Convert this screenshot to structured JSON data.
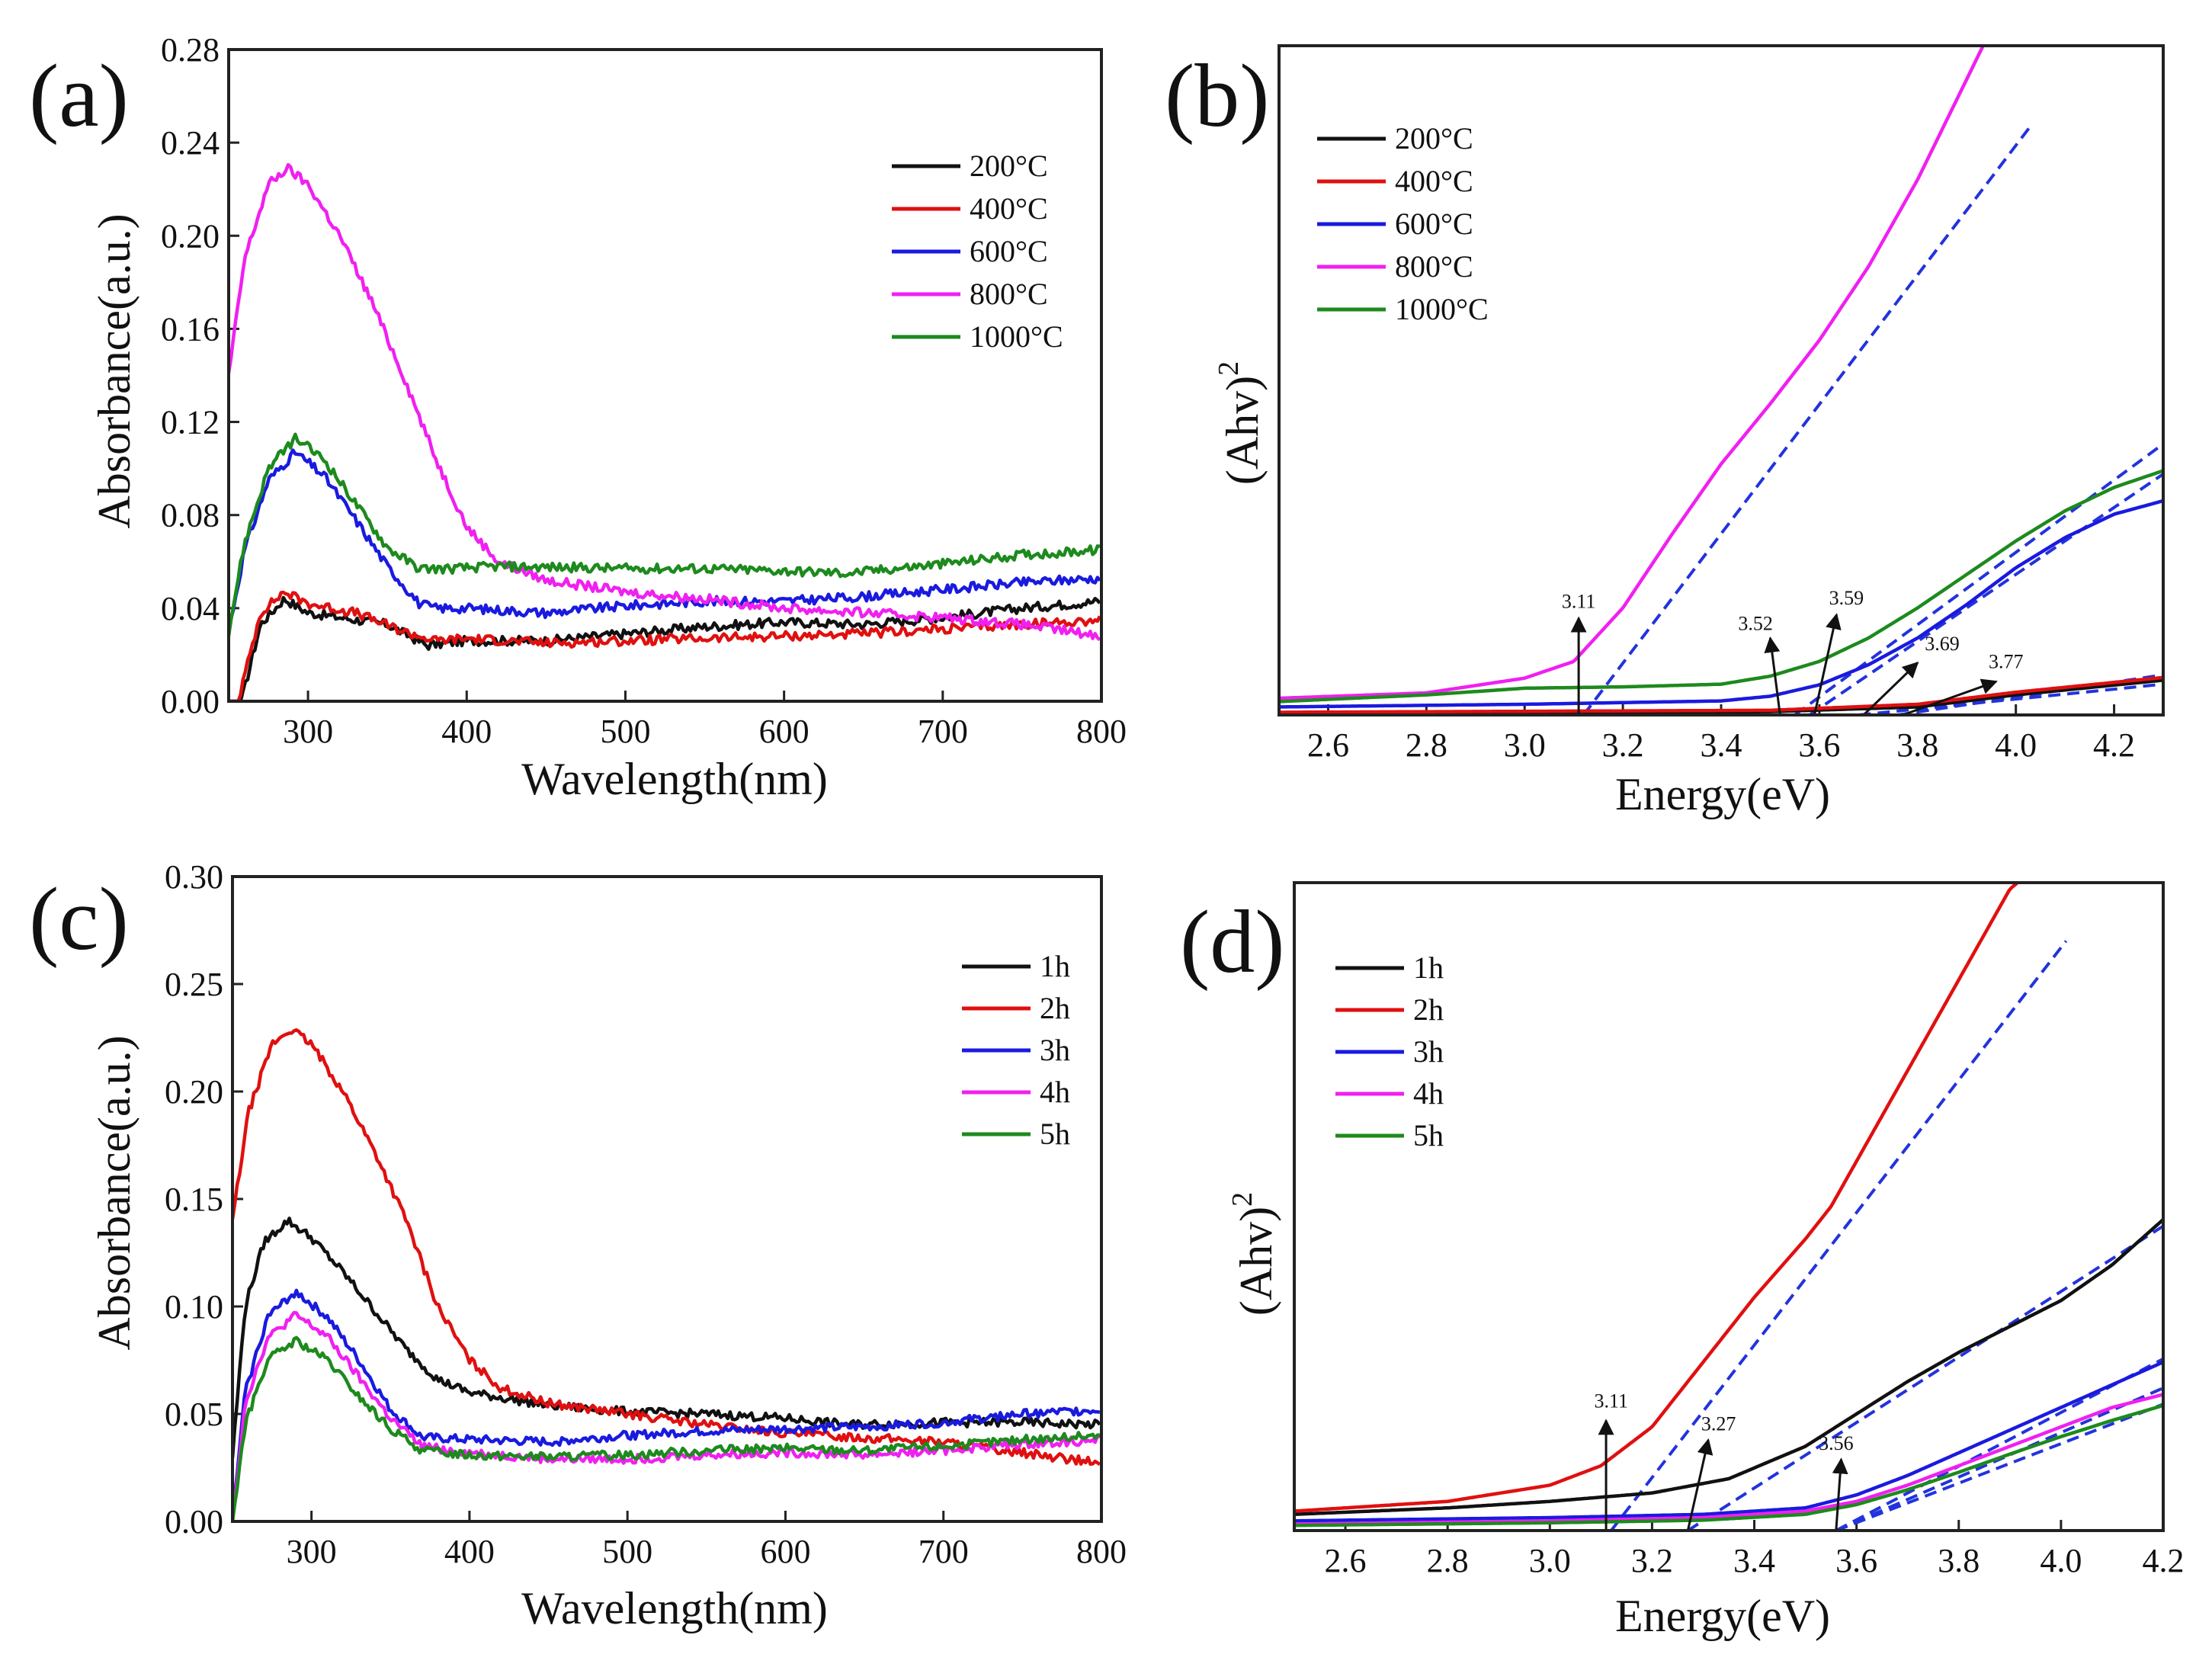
{
  "chart_data": [
    {
      "id": "a",
      "panel_label": "(a)",
      "type": "line",
      "xlabel": "Wavelength(nm)",
      "ylabel": "Absorbance(a.u.)",
      "xlim": [
        250,
        800
      ],
      "ylim": [
        0,
        0.28
      ],
      "xticks": [
        300,
        400,
        500,
        600,
        700,
        800
      ],
      "yticks": [
        0.0,
        0.04,
        0.08,
        0.12,
        0.16,
        0.2,
        0.24,
        0.28
      ],
      "ydecimals": 2,
      "show_yticks": true,
      "legend_position": "top-right",
      "series": [
        {
          "name": "200°C",
          "color": "#111111",
          "noise": 0.002,
          "x": [
            250,
            258,
            270,
            285,
            300,
            320,
            350,
            375,
            400,
            450,
            500,
            550,
            600,
            650,
            700,
            750,
            800
          ],
          "y": [
            0.0,
            0.0,
            0.033,
            0.044,
            0.038,
            0.036,
            0.033,
            0.024,
            0.026,
            0.026,
            0.029,
            0.032,
            0.034,
            0.033,
            0.036,
            0.04,
            0.043
          ]
        },
        {
          "name": "400°C",
          "color": "#e01010",
          "noise": 0.002,
          "x": [
            250,
            256,
            270,
            285,
            300,
            330,
            360,
            380,
            400,
            450,
            500,
            550,
            600,
            650,
            700,
            750,
            800
          ],
          "y": [
            0.0,
            0.0,
            0.038,
            0.047,
            0.042,
            0.038,
            0.03,
            0.026,
            0.027,
            0.025,
            0.026,
            0.027,
            0.028,
            0.029,
            0.031,
            0.033,
            0.035
          ]
        },
        {
          "name": "600°C",
          "color": "#1a1adf",
          "noise": 0.002,
          "x": [
            250,
            260,
            275,
            292,
            310,
            330,
            350,
            370,
            380,
            400,
            450,
            500,
            550,
            600,
            650,
            700,
            750,
            800
          ],
          "y": [
            0.03,
            0.065,
            0.095,
            0.107,
            0.097,
            0.078,
            0.058,
            0.042,
            0.04,
            0.04,
            0.038,
            0.041,
            0.043,
            0.043,
            0.045,
            0.048,
            0.051,
            0.053
          ]
        },
        {
          "name": "800°C",
          "color": "#f020f0",
          "noise": 0.002,
          "x": [
            250,
            260,
            275,
            287,
            300,
            320,
            340,
            360,
            380,
            400,
            420,
            450,
            500,
            550,
            600,
            650,
            700,
            750,
            800
          ],
          "y": [
            0.14,
            0.19,
            0.222,
            0.229,
            0.222,
            0.2,
            0.172,
            0.14,
            0.105,
            0.075,
            0.06,
            0.052,
            0.047,
            0.044,
            0.04,
            0.038,
            0.036,
            0.033,
            0.028
          ]
        },
        {
          "name": "1000°C",
          "color": "#1d8a1d",
          "noise": 0.002,
          "x": [
            250,
            260,
            275,
            292,
            310,
            330,
            350,
            370,
            390,
            420,
            500,
            550,
            600,
            640,
            700,
            750,
            800
          ],
          "y": [
            0.03,
            0.068,
            0.1,
            0.113,
            0.104,
            0.085,
            0.066,
            0.057,
            0.057,
            0.058,
            0.057,
            0.057,
            0.056,
            0.055,
            0.059,
            0.063,
            0.065
          ]
        }
      ]
    },
    {
      "id": "b",
      "panel_label": "(b)",
      "type": "line",
      "xlabel": "Energy(eV)",
      "ylabel_main": "(Ahv)",
      "ylabel_sup": "2",
      "xlim": [
        2.5,
        4.3
      ],
      "ylim": [
        0,
        100
      ],
      "xticks": [
        2.6,
        2.8,
        3.0,
        3.2,
        3.4,
        3.6,
        3.8,
        4.0,
        4.2
      ],
      "xdecimals": 1,
      "show_yticks": false,
      "legend_position": "top-left",
      "series": [
        {
          "name": "200°C",
          "color": "#111111",
          "x": [
            2.5,
            3.5,
            3.8,
            4.0,
            4.3
          ],
          "y": [
            0.3,
            0.5,
            1.2,
            3.0,
            5.2
          ]
        },
        {
          "name": "400°C",
          "color": "#e01010",
          "x": [
            2.5,
            3.5,
            3.8,
            4.0,
            4.3
          ],
          "y": [
            0.4,
            0.7,
            1.6,
            3.4,
            5.6
          ]
        },
        {
          "name": "600°C",
          "color": "#1a1adf",
          "x": [
            2.5,
            3.0,
            3.4,
            3.5,
            3.6,
            3.7,
            3.8,
            3.9,
            4.0,
            4.1,
            4.2,
            4.3
          ],
          "y": [
            1.2,
            1.6,
            2.1,
            2.8,
            4.5,
            7.5,
            11.5,
            16.5,
            22.0,
            26.5,
            30.0,
            32.0
          ]
        },
        {
          "name": "800°C",
          "color": "#f020f0",
          "x": [
            2.5,
            2.8,
            3.0,
            3.1,
            3.2,
            3.3,
            3.4,
            3.5,
            3.6,
            3.7,
            3.8,
            3.9,
            3.94
          ],
          "y": [
            2.5,
            3.3,
            5.5,
            8.0,
            16.0,
            27.0,
            37.5,
            46.5,
            56.0,
            67.0,
            80.0,
            95.0,
            101.0
          ]
        },
        {
          "name": "1000°C",
          "color": "#1d8a1d",
          "x": [
            2.5,
            2.8,
            3.0,
            3.2,
            3.4,
            3.5,
            3.6,
            3.7,
            3.8,
            3.9,
            4.0,
            4.1,
            4.2,
            4.3
          ],
          "y": [
            2.0,
            3.0,
            4.0,
            4.2,
            4.6,
            5.8,
            8.0,
            11.5,
            16.0,
            21.0,
            26.0,
            30.5,
            34.0,
            36.5
          ]
        }
      ],
      "fit_lines": [
        {
          "x": [
            3.12,
            4.03
          ],
          "y": [
            0,
            88
          ]
        },
        {
          "x": [
            3.55,
            4.3
          ],
          "y": [
            0,
            40.5
          ]
        },
        {
          "x": [
            3.58,
            4.3
          ],
          "y": [
            0,
            36.0
          ]
        },
        {
          "x": [
            3.68,
            4.3
          ],
          "y": [
            0,
            4.6
          ]
        },
        {
          "x": [
            3.76,
            4.3
          ],
          "y": [
            0,
            6.0
          ]
        }
      ],
      "annotations": [
        {
          "text": "3.11",
          "x": 3.11,
          "label_y": 16.0,
          "ex": 3.11,
          "ey": 0,
          "sx": 3.11,
          "sy": 14.5
        },
        {
          "text": "3.52",
          "x": 3.47,
          "label_y": 12.7,
          "ex": 3.52,
          "ey": 0,
          "sx": 3.5,
          "sy": 11.5
        },
        {
          "text": "3.59",
          "x": 3.655,
          "label_y": 16.5,
          "ex": 3.59,
          "ey": 0,
          "sx": 3.635,
          "sy": 15.0
        },
        {
          "text": "3.69",
          "x": 3.85,
          "label_y": 9.7,
          "ex": 3.69,
          "ey": 0,
          "sx": 3.8,
          "sy": 7.8
        },
        {
          "text": "3.77",
          "x": 3.98,
          "label_y": 7.0,
          "ex": 3.77,
          "ey": 0,
          "sx": 3.96,
          "sy": 5.0
        }
      ]
    },
    {
      "id": "c",
      "panel_label": "(c)",
      "type": "line",
      "xlabel": "Wavelength(nm)",
      "ylabel": "Absorbance(a.u.)",
      "xlim": [
        250,
        800
      ],
      "ylim": [
        0,
        0.3
      ],
      "xticks": [
        300,
        400,
        500,
        600,
        700,
        800
      ],
      "yticks": [
        0.0,
        0.05,
        0.1,
        0.15,
        0.2,
        0.25,
        0.3
      ],
      "ydecimals": 2,
      "show_yticks": true,
      "legend_position": "top-right",
      "series": [
        {
          "name": "1h",
          "color": "#111111",
          "noise": 0.002,
          "x": [
            250,
            258,
            270,
            285,
            300,
            320,
            340,
            360,
            380,
            400,
            450,
            500,
            550,
            600,
            640,
            700,
            750,
            800
          ],
          "y": [
            0.03,
            0.1,
            0.13,
            0.14,
            0.132,
            0.116,
            0.098,
            0.08,
            0.066,
            0.06,
            0.054,
            0.051,
            0.05,
            0.048,
            0.045,
            0.046,
            0.046,
            0.045
          ]
        },
        {
          "name": "2h",
          "color": "#e01010",
          "noise": 0.002,
          "x": [
            250,
            260,
            275,
            287,
            300,
            320,
            340,
            360,
            380,
            400,
            420,
            450,
            500,
            550,
            600,
            650,
            700,
            750,
            800
          ],
          "y": [
            0.14,
            0.19,
            0.222,
            0.229,
            0.222,
            0.2,
            0.172,
            0.14,
            0.1,
            0.075,
            0.062,
            0.055,
            0.05,
            0.045,
            0.041,
            0.039,
            0.037,
            0.032,
            0.027
          ]
        },
        {
          "name": "3h",
          "color": "#1a1adf",
          "noise": 0.002,
          "x": [
            250,
            258,
            272,
            290,
            310,
            330,
            350,
            370,
            400,
            450,
            500,
            550,
            600,
            650,
            700,
            750,
            800
          ],
          "y": [
            0.0,
            0.06,
            0.095,
            0.107,
            0.095,
            0.075,
            0.052,
            0.039,
            0.038,
            0.037,
            0.04,
            0.042,
            0.043,
            0.044,
            0.046,
            0.05,
            0.052
          ]
        },
        {
          "name": "4h",
          "color": "#f020f0",
          "noise": 0.002,
          "x": [
            250,
            258,
            272,
            290,
            310,
            330,
            350,
            370,
            400,
            450,
            500,
            550,
            600,
            650,
            700,
            750,
            800
          ],
          "y": [
            0.0,
            0.055,
            0.085,
            0.096,
            0.086,
            0.067,
            0.048,
            0.035,
            0.032,
            0.029,
            0.029,
            0.031,
            0.032,
            0.031,
            0.033,
            0.036,
            0.038
          ]
        },
        {
          "name": "5h",
          "color": "#1d8a1d",
          "noise": 0.002,
          "x": [
            250,
            258,
            272,
            290,
            310,
            330,
            350,
            370,
            400,
            450,
            500,
            550,
            600,
            650,
            700,
            750,
            800
          ],
          "y": [
            0.0,
            0.045,
            0.075,
            0.084,
            0.075,
            0.058,
            0.043,
            0.033,
            0.031,
            0.03,
            0.031,
            0.033,
            0.034,
            0.033,
            0.035,
            0.038,
            0.04
          ]
        }
      ]
    },
    {
      "id": "d",
      "panel_label": "(d)",
      "type": "line",
      "xlabel": "Energy(eV)",
      "ylabel_main": "(Ahv)",
      "ylabel_sup": "2",
      "xlim": [
        2.5,
        4.2
      ],
      "ylim": [
        0,
        100
      ],
      "xticks": [
        2.6,
        2.8,
        3.0,
        3.2,
        3.4,
        3.6,
        3.8,
        4.0,
        4.2
      ],
      "xdecimals": 1,
      "show_yticks": false,
      "legend_position": "top-left",
      "series": [
        {
          "name": "1h",
          "color": "#111111",
          "x": [
            2.5,
            2.8,
            3.0,
            3.2,
            3.35,
            3.5,
            3.6,
            3.7,
            3.8,
            3.9,
            4.0,
            4.1,
            4.2
          ],
          "y": [
            2.5,
            3.5,
            4.5,
            5.8,
            8.0,
            13.0,
            18.0,
            23.0,
            27.5,
            31.5,
            35.5,
            41.0,
            48.0
          ]
        },
        {
          "name": "2h",
          "color": "#e01010",
          "x": [
            2.5,
            2.8,
            3.0,
            3.1,
            3.2,
            3.3,
            3.4,
            3.5,
            3.55,
            3.6,
            3.7,
            3.8,
            3.9,
            3.93
          ],
          "y": [
            3.0,
            4.5,
            7.0,
            10.0,
            16.0,
            26.0,
            36.0,
            45.0,
            50.0,
            57.0,
            71.0,
            85.0,
            99.0,
            101.0
          ]
        },
        {
          "name": "3h",
          "color": "#1a1adf",
          "x": [
            2.5,
            3.0,
            3.3,
            3.5,
            3.6,
            3.7,
            3.8,
            3.9,
            4.0,
            4.1,
            4.2
          ],
          "y": [
            1.5,
            2.0,
            2.5,
            3.5,
            5.5,
            8.5,
            12.0,
            15.5,
            19.0,
            22.5,
            26.0
          ]
        },
        {
          "name": "4h",
          "color": "#f020f0",
          "x": [
            2.5,
            3.0,
            3.3,
            3.5,
            3.6,
            3.7,
            3.8,
            3.9,
            4.0,
            4.1,
            4.2
          ],
          "y": [
            1.0,
            1.5,
            2.0,
            3.0,
            4.5,
            7.0,
            10.0,
            13.0,
            16.0,
            19.0,
            21.0
          ]
        },
        {
          "name": "5h",
          "color": "#1d8a1d",
          "x": [
            2.5,
            3.0,
            3.3,
            3.5,
            3.6,
            3.7,
            3.8,
            3.9,
            4.0,
            4.1,
            4.2
          ],
          "y": [
            0.8,
            1.2,
            1.6,
            2.5,
            4.0,
            6.3,
            9.0,
            11.8,
            14.5,
            17.0,
            19.3
          ]
        }
      ],
      "fit_lines": [
        {
          "x": [
            3.12,
            4.01
          ],
          "y": [
            0,
            91
          ]
        },
        {
          "x": [
            3.27,
            4.2
          ],
          "y": [
            0,
            47
          ]
        },
        {
          "x": [
            3.56,
            4.2
          ],
          "y": [
            0,
            26.5
          ]
        },
        {
          "x": [
            3.56,
            4.2
          ],
          "y": [
            0,
            22.0
          ]
        },
        {
          "x": [
            3.56,
            4.2
          ],
          "y": [
            0,
            19.5
          ]
        }
      ],
      "annotations": [
        {
          "text": "3.11",
          "x": 3.12,
          "label_y": 19.0,
          "ex": 3.11,
          "ey": 0,
          "sx": 3.11,
          "sy": 17.0
        },
        {
          "text": "3.27",
          "x": 3.33,
          "label_y": 15.5,
          "ex": 3.27,
          "ey": 0,
          "sx": 3.31,
          "sy": 14.0
        },
        {
          "text": "3.56",
          "x": 3.56,
          "label_y": 12.5,
          "ex": 3.56,
          "ey": 0,
          "sx": 3.57,
          "sy": 11.0
        }
      ]
    }
  ]
}
